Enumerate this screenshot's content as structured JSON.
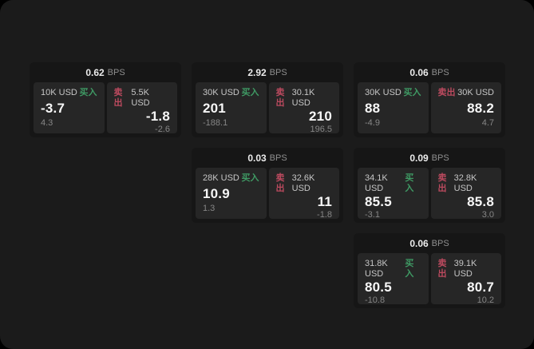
{
  "labels": {
    "buy": "买入",
    "sell": "卖出",
    "bps_unit": "BPS"
  },
  "colors": {
    "canvas_bg": "#1b1b1b",
    "card_bg": "#161616",
    "panel_bg": "#262626",
    "buy_accent": "#3f9a64",
    "sell_accent": "#bc4a5f"
  },
  "cards": [
    {
      "bps": "0.62",
      "buy": {
        "amount": "10K USD",
        "value": "-3.7",
        "sub": "4.3"
      },
      "sell": {
        "amount": "5.5K USD",
        "value": "-1.8",
        "sub": "-2.6"
      }
    },
    {
      "bps": "2.92",
      "buy": {
        "amount": "30K USD",
        "value": "201",
        "sub": "-188.1"
      },
      "sell": {
        "amount": "30.1K USD",
        "value": "210",
        "sub": "196.5"
      }
    },
    {
      "bps": "0.06",
      "buy": {
        "amount": "30K USD",
        "value": "88",
        "sub": "-4.9"
      },
      "sell": {
        "amount": "30K USD",
        "value": "88.2",
        "sub": "4.7"
      }
    },
    {
      "bps": "0.03",
      "buy": {
        "amount": "28K USD",
        "value": "10.9",
        "sub": "1.3"
      },
      "sell": {
        "amount": "32.6K USD",
        "value": "11",
        "sub": "-1.8"
      }
    },
    {
      "bps": "0.09",
      "buy": {
        "amount": "34.1K USD",
        "value": "85.5",
        "sub": "-3.1"
      },
      "sell": {
        "amount": "32.8K USD",
        "value": "85.8",
        "sub": "3.0"
      }
    },
    {
      "bps": "0.06",
      "buy": {
        "amount": "31.8K USD",
        "value": "80.5",
        "sub": "-10.8"
      },
      "sell": {
        "amount": "39.1K USD",
        "value": "80.7",
        "sub": "10.2"
      }
    }
  ]
}
